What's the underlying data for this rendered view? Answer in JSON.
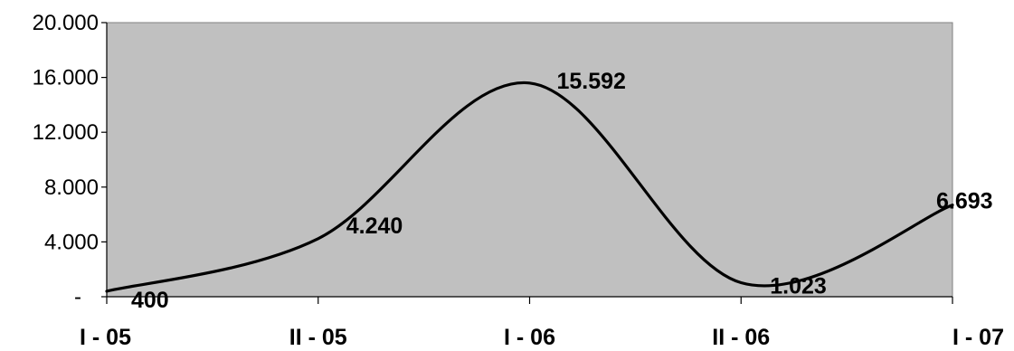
{
  "chart_data": {
    "type": "line",
    "title": "",
    "xlabel": "",
    "ylabel": "",
    "categories": [
      "I - 05",
      "II - 05",
      "I - 06",
      "II - 06",
      "I - 07"
    ],
    "ylim": [
      0,
      20000
    ],
    "y_ticks": [
      0,
      4000,
      8000,
      12000,
      16000,
      20000
    ],
    "y_tick_labels": [
      "-",
      "4.000",
      "8.000",
      "12.000",
      "16.000",
      "20.000"
    ],
    "grid": false,
    "legend": "none",
    "series": [
      {
        "x": [
          0,
          1,
          2,
          3,
          4
        ],
        "values": [
          400,
          4240,
          15592,
          1023,
          6693
        ],
        "labels": [
          "400",
          "4.240",
          "15.592",
          "1.023",
          "6.693"
        ]
      }
    ],
    "colors": {
      "plot_background": "#c0c0c0",
      "line": "#000000"
    }
  }
}
